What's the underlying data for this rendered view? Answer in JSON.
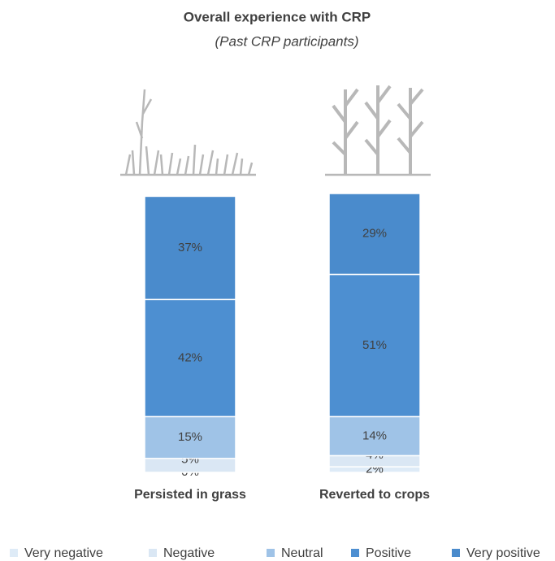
{
  "chart_data": {
    "type": "stacked-bar",
    "title": "Overall experience with CRP",
    "subtitle": "(Past CRP participants)",
    "categories": [
      "Persisted in grass",
      "Reverted to crops"
    ],
    "series": [
      {
        "name": "Very negative",
        "color": "#deebf7",
        "values": [
          0,
          2
        ],
        "value_labels": [
          "0%",
          "2%"
        ]
      },
      {
        "name": "Negative",
        "color": "#dae7f4",
        "values": [
          5,
          4
        ],
        "value_labels": [
          "5%",
          "4%"
        ]
      },
      {
        "name": "Neutral",
        "color": "#9fc3e7",
        "values": [
          15,
          14
        ],
        "value_labels": [
          "15%",
          "14%"
        ]
      },
      {
        "name": "Positive",
        "color": "#4d8fd1",
        "values": [
          42,
          51
        ],
        "value_labels": [
          "42%",
          "51%"
        ]
      },
      {
        "name": "Very positive",
        "color": "#4a8bcc",
        "values": [
          37,
          29
        ],
        "value_labels": [
          "37%",
          "29%"
        ]
      }
    ],
    "legend": "bottom"
  }
}
